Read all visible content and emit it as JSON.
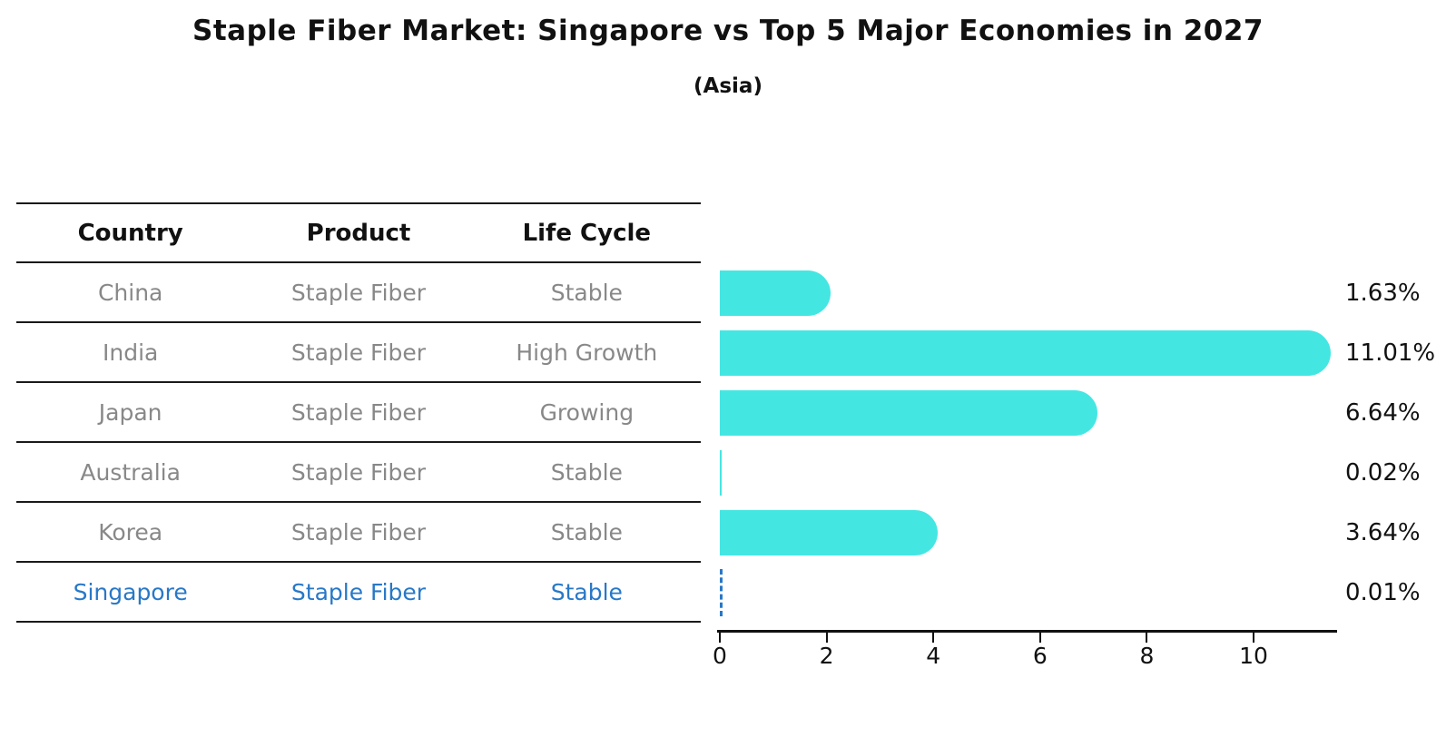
{
  "title": "Staple Fiber Market: Singapore vs Top 5 Major Economies in 2027",
  "subtitle": "(Asia)",
  "table": {
    "headers": [
      "Country",
      "Product",
      "Life Cycle"
    ],
    "rows": [
      {
        "country": "China",
        "product": "Staple Fiber",
        "life_cycle": "Stable",
        "highlighted": false
      },
      {
        "country": "India",
        "product": "Staple Fiber",
        "life_cycle": "High Growth",
        "highlighted": false
      },
      {
        "country": "Japan",
        "product": "Staple Fiber",
        "life_cycle": "Growing",
        "highlighted": false
      },
      {
        "country": "Australia",
        "product": "Staple Fiber",
        "life_cycle": "Stable",
        "highlighted": false
      },
      {
        "country": "Korea",
        "product": "Staple Fiber",
        "life_cycle": "Stable",
        "highlighted": false
      },
      {
        "country": "Singapore",
        "product": "Staple Fiber",
        "life_cycle": "Stable",
        "highlighted": true
      }
    ]
  },
  "chart_data": {
    "type": "bar",
    "orientation": "horizontal",
    "title": "Staple Fiber Market: Singapore vs Top 5 Major Economies in 2027",
    "subtitle": "(Asia)",
    "categories": [
      "China",
      "India",
      "Japan",
      "Australia",
      "Korea",
      "Singapore"
    ],
    "values": [
      1.63,
      11.01,
      6.64,
      0.02,
      3.64,
      0.01
    ],
    "value_labels": [
      "1.63%",
      "11.01%",
      "6.64%",
      "0.02%",
      "3.64%",
      "0.01%"
    ],
    "x_ticks": [
      0,
      2,
      4,
      6,
      8,
      10
    ],
    "xlim": [
      0,
      11.6
    ],
    "xlabel": "",
    "ylabel": "",
    "grid": false,
    "legend": "none",
    "bar_color": "#44e6e2",
    "highlight_color": "#2878c8",
    "highlight_index": 5,
    "highlight_style": "dashed-outline"
  },
  "colors": {
    "background": "#ffffff",
    "text_primary": "#111111",
    "text_muted": "#888888",
    "table_line": "#1a1a1a",
    "bar": "#44e6e2",
    "highlight": "#2878c8"
  }
}
